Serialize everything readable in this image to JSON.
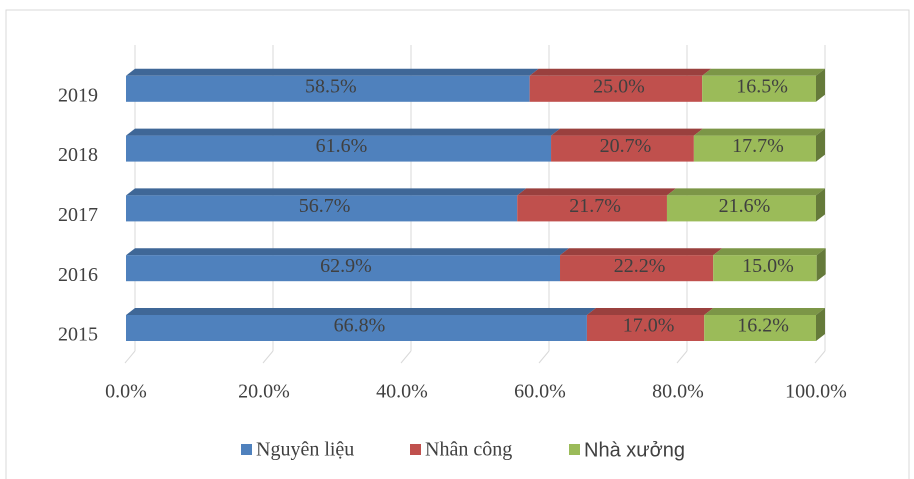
{
  "chart_data": {
    "type": "stacked-bar-horizontal",
    "categories": [
      "2015",
      "2016",
      "2017",
      "2018",
      "2019"
    ],
    "series": [
      {
        "name": "Nguyên liệu",
        "color": "#4f81bd",
        "values": [
          66.8,
          62.9,
          56.7,
          61.6,
          58.5
        ],
        "value_labels": [
          "66.8%",
          "62.9%",
          "56.7%",
          "61.6%",
          "58.5%"
        ]
      },
      {
        "name": "Nhân công",
        "color": "#c0504d",
        "values": [
          17.0,
          22.2,
          21.7,
          20.7,
          25.0
        ],
        "value_labels": [
          "17.0%",
          "22.2%",
          "21.7%",
          "20.7%",
          "25.0%"
        ]
      },
      {
        "name": "Nhà xưởng",
        "color": "#9bbb59",
        "values": [
          16.2,
          15.0,
          21.6,
          17.7,
          16.5
        ],
        "value_labels": [
          "16.2%",
          "15.0%",
          "21.6%",
          "17.7%",
          "16.5%"
        ]
      }
    ],
    "xlim": [
      0,
      100
    ],
    "xticks": [
      {
        "value": 0,
        "label": "0.0%"
      },
      {
        "value": 20,
        "label": "20.0%"
      },
      {
        "value": 40,
        "label": "40.0%"
      },
      {
        "value": 60,
        "label": "60.0%"
      },
      {
        "value": 80,
        "label": "80.0%"
      },
      {
        "value": 100,
        "label": "100.0%"
      }
    ],
    "grid": true,
    "legend": "bottom"
  }
}
